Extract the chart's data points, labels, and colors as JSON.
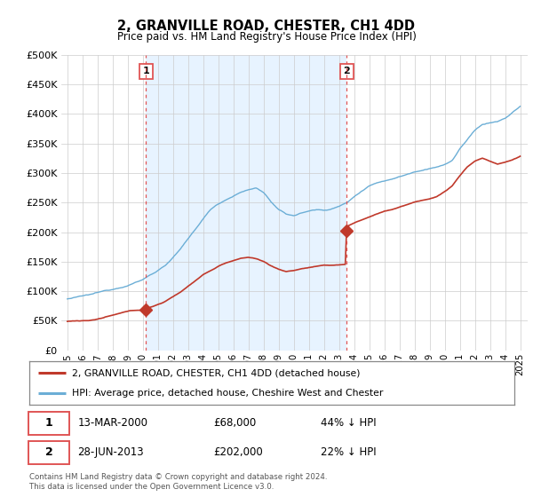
{
  "title": "2, GRANVILLE ROAD, CHESTER, CH1 4DD",
  "subtitle": "Price paid vs. HM Land Registry's House Price Index (HPI)",
  "legend_line1": "2, GRANVILLE ROAD, CHESTER, CH1 4DD (detached house)",
  "legend_line2": "HPI: Average price, detached house, Cheshire West and Chester",
  "footnote": "Contains HM Land Registry data © Crown copyright and database right 2024.\nThis data is licensed under the Open Government Licence v3.0.",
  "annotation1_date": "13-MAR-2000",
  "annotation1_price": "£68,000",
  "annotation1_hpi": "44% ↓ HPI",
  "annotation1_value": 68000,
  "annotation1_year": 2000.2,
  "annotation2_date": "28-JUN-2013",
  "annotation2_price": "£202,000",
  "annotation2_hpi": "22% ↓ HPI",
  "annotation2_value": 202000,
  "annotation2_year": 2013.5,
  "hpi_color": "#6baed6",
  "price_color": "#c0392b",
  "vline_color": "#e05555",
  "shade_color": "#ddeeff",
  "grid_color": "#cccccc",
  "bg_color": "#ffffff",
  "ylim": [
    0,
    500000
  ],
  "yticks": [
    0,
    50000,
    100000,
    150000,
    200000,
    250000,
    300000,
    350000,
    400000,
    450000,
    500000
  ],
  "xlabel_years": [
    1995,
    1996,
    1997,
    1998,
    1999,
    2000,
    2001,
    2002,
    2003,
    2004,
    2005,
    2006,
    2007,
    2008,
    2009,
    2010,
    2011,
    2012,
    2013,
    2014,
    2015,
    2016,
    2017,
    2018,
    2019,
    2020,
    2021,
    2022,
    2023,
    2024,
    2025
  ],
  "hpi_anchors_t": [
    1995.0,
    1995.5,
    1996.0,
    1996.5,
    1997.0,
    1997.5,
    1998.0,
    1998.5,
    1999.0,
    1999.5,
    2000.0,
    2000.5,
    2001.0,
    2001.5,
    2002.0,
    2002.5,
    2003.0,
    2003.5,
    2004.0,
    2004.5,
    2005.0,
    2005.5,
    2006.0,
    2006.5,
    2007.0,
    2007.5,
    2008.0,
    2008.5,
    2009.0,
    2009.5,
    2010.0,
    2010.5,
    2011.0,
    2011.5,
    2012.0,
    2012.5,
    2013.0,
    2013.5,
    2014.0,
    2014.5,
    2015.0,
    2015.5,
    2016.0,
    2016.5,
    2017.0,
    2017.5,
    2018.0,
    2018.5,
    2019.0,
    2019.5,
    2020.0,
    2020.5,
    2021.0,
    2021.5,
    2022.0,
    2022.5,
    2023.0,
    2023.5,
    2024.0,
    2024.5,
    2025.0
  ],
  "hpi_anchors_v": [
    87000,
    89000,
    91000,
    93000,
    96000,
    99000,
    102000,
    106000,
    110000,
    115000,
    120000,
    128000,
    136000,
    145000,
    158000,
    172000,
    188000,
    205000,
    222000,
    238000,
    248000,
    255000,
    262000,
    268000,
    272000,
    275000,
    268000,
    252000,
    238000,
    230000,
    228000,
    232000,
    236000,
    238000,
    237000,
    240000,
    244000,
    250000,
    260000,
    270000,
    280000,
    285000,
    288000,
    292000,
    296000,
    300000,
    305000,
    308000,
    312000,
    315000,
    318000,
    325000,
    345000,
    360000,
    375000,
    385000,
    388000,
    390000,
    395000,
    405000,
    415000
  ],
  "price_anchors_t": [
    1995.0,
    1995.5,
    1996.0,
    1996.5,
    1997.0,
    1997.5,
    1998.0,
    1998.5,
    1999.0,
    1999.5,
    2000.2,
    2000.5,
    2001.0,
    2001.5,
    2002.0,
    2002.5,
    2003.0,
    2003.5,
    2004.0,
    2004.5,
    2005.0,
    2005.5,
    2006.0,
    2006.5,
    2007.0,
    2007.5,
    2008.0,
    2008.5,
    2009.0,
    2009.5,
    2010.0,
    2010.5,
    2011.0,
    2011.5,
    2012.0,
    2012.5,
    2013.0,
    2013.45,
    2013.5,
    2013.6,
    2014.0,
    2014.5,
    2015.0,
    2015.5,
    2016.0,
    2016.5,
    2017.0,
    2017.5,
    2018.0,
    2018.5,
    2019.0,
    2019.5,
    2020.0,
    2020.5,
    2021.0,
    2021.5,
    2022.0,
    2022.5,
    2023.0,
    2023.5,
    2024.0,
    2024.5,
    2025.0
  ],
  "price_anchors_v": [
    49000,
    50000,
    50500,
    51000,
    53000,
    56000,
    59000,
    62000,
    65000,
    66500,
    68000,
    72000,
    77000,
    82000,
    90000,
    98000,
    108000,
    118000,
    128000,
    135000,
    142000,
    148000,
    152000,
    155000,
    157000,
    155000,
    150000,
    143000,
    137000,
    133000,
    135000,
    138000,
    140000,
    142000,
    143000,
    143000,
    144000,
    145000,
    202000,
    210000,
    215000,
    220000,
    225000,
    230000,
    235000,
    238000,
    242000,
    246000,
    250000,
    253000,
    256000,
    260000,
    268000,
    278000,
    295000,
    310000,
    320000,
    325000,
    320000,
    315000,
    318000,
    322000,
    328000
  ]
}
